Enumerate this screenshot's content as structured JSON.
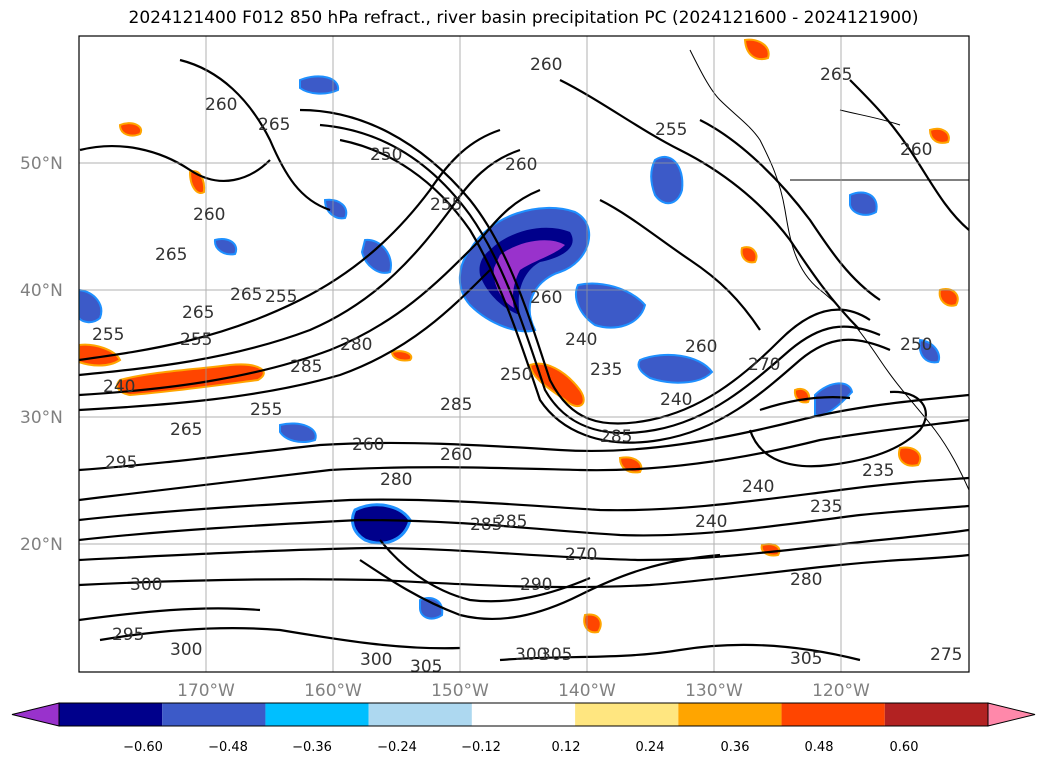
{
  "title": "2024121400 F012 850 hPa refract., river basin precipitation PC (2024121600 - 2024121900)",
  "latitude_labels": [
    "50°N",
    "40°N",
    "30°N",
    "20°N"
  ],
  "longitude_labels": [
    "170°W",
    "160°W",
    "150°W",
    "140°W",
    "130°W",
    "120°W"
  ],
  "colorbar": {
    "colors": [
      "#9932cc",
      "#00008b",
      "#3c5ac8",
      "#00bfff",
      "#add8f0",
      "#ffffff",
      "#ffe680",
      "#ffa500",
      "#ff4500",
      "#b22222",
      "#ff88aa"
    ],
    "tick_labels": [
      "−0.60",
      "−0.48",
      "−0.36",
      "−0.24",
      "−0.12",
      "0.12",
      "0.24",
      "0.36",
      "0.48",
      "0.60"
    ]
  },
  "contour_labels": [
    "260",
    "260",
    "265",
    "250",
    "260",
    "255",
    "265",
    "260",
    "265",
    "255",
    "260",
    "250",
    "255",
    "260",
    "265",
    "265",
    "255",
    "255",
    "280",
    "260",
    "240",
    "270",
    "240",
    "285",
    "285",
    "240",
    "250",
    "235",
    "265",
    "260",
    "240",
    "285",
    "260",
    "280",
    "285",
    "295",
    "255",
    "300",
    "290",
    "285",
    "235",
    "240",
    "235",
    "270",
    "280",
    "300",
    "295",
    "305",
    "300",
    "300",
    "305",
    "305",
    "275"
  ]
}
